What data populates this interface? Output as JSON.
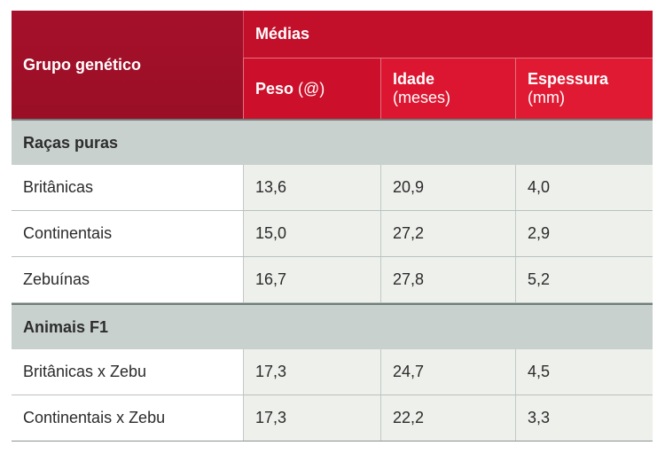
{
  "header": {
    "group_label": "Grupo genético",
    "medias_label": "Médias",
    "columns": [
      {
        "bold": "Peso",
        "unit": "(@)"
      },
      {
        "bold": "Idade",
        "unit": "(meses)"
      },
      {
        "bold": "Espessura",
        "unit": "(mm)"
      }
    ]
  },
  "sections": [
    {
      "title": "Raças puras",
      "rows": [
        {
          "name": "Britânicas",
          "values": [
            "13,6",
            "20,9",
            "4,0"
          ]
        },
        {
          "name": "Continentais",
          "values": [
            "15,0",
            "27,2",
            "2,9"
          ]
        },
        {
          "name": "Zebuínas",
          "values": [
            "16,7",
            "27,8",
            "5,2"
          ]
        }
      ]
    },
    {
      "title": "Animais F1",
      "rows": [
        {
          "name": "Britânicas x Zebu",
          "values": [
            "17,3",
            "24,7",
            "4,5"
          ]
        },
        {
          "name": "Continentais x Zebu",
          "values": [
            "17,3",
            "22,2",
            "3,3"
          ]
        }
      ]
    }
  ]
}
